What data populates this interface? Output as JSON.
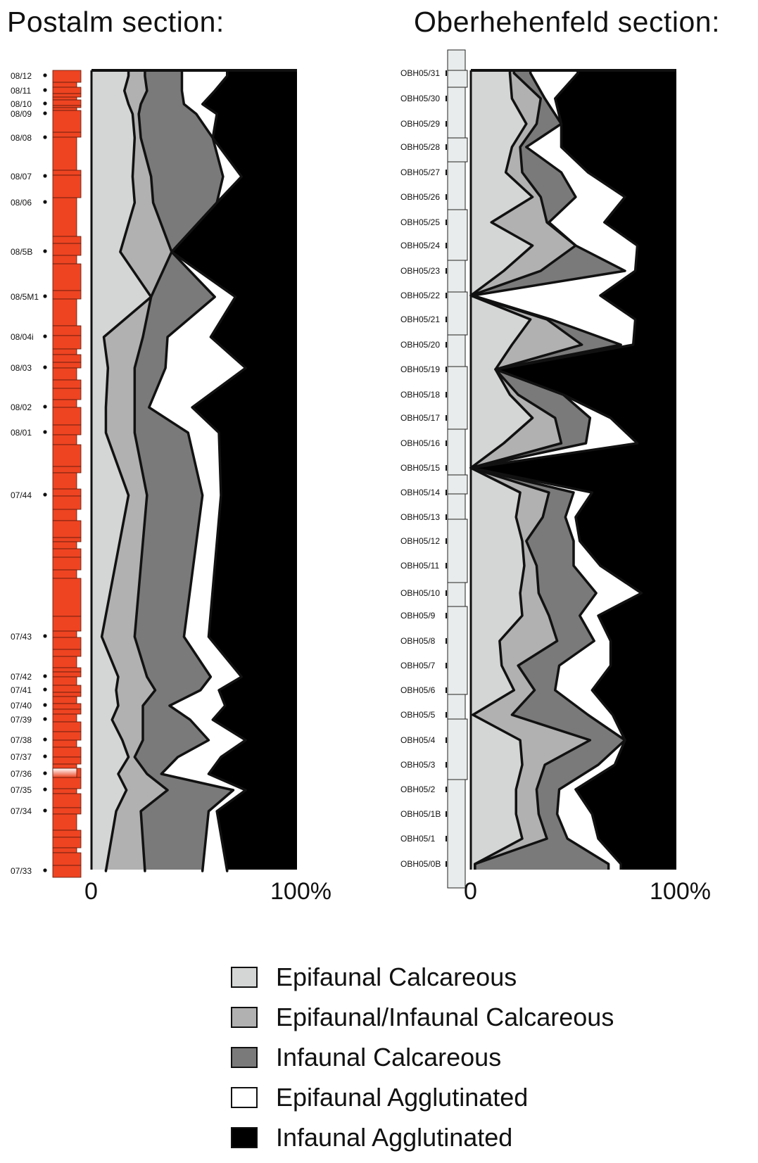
{
  "titles": {
    "left": "Postalm section:",
    "right": "Oberhehenfeld section:"
  },
  "colors": {
    "epifaunal_calcareous": "#d4d6d5",
    "epi_infaunal_calcareous": "#b1b1b1",
    "infaunal_calcareous": "#7a7a7a",
    "epifaunal_agglutinated": "#ffffff",
    "infaunal_agglutinated": "#000000",
    "postalm_column": "#ee4422",
    "oberhehenfeld_column": "#e9ecec"
  },
  "legend": [
    {
      "label": "Epifaunal Calcareous",
      "color": "#d4d6d5"
    },
    {
      "label": "Epifaunal/Infaunal Calcareous",
      "color": "#b1b1b1"
    },
    {
      "label": "Infaunal Calcareous",
      "color": "#7a7a7a"
    },
    {
      "label": "Epifaunal Agglutinated",
      "color": "#ffffff"
    },
    {
      "label": "Infaunal Agglutinated",
      "color": "#000000"
    }
  ],
  "chart_data": [
    {
      "type": "area",
      "title": "Postalm section:",
      "x_ticks": [
        "0",
        "100%"
      ],
      "xlim": [
        0,
        100
      ],
      "stacked": true,
      "series_names": [
        "Epifaunal Calcareous",
        "Epifaunal/Infaunal Calcareous",
        "Infaunal Calcareous",
        "Epifaunal Agglutinated",
        "Infaunal Agglutinated"
      ],
      "samples": [
        "08/12",
        "08/11",
        "08/10",
        "08/09",
        "08/08",
        "08/07",
        "08/06",
        "08/5B",
        "08/5M1",
        "08/04i",
        "08/03",
        "08/02",
        "08/01",
        "07/44",
        "07/43",
        "07/42",
        "07/41",
        "07/40",
        "07/39",
        "07/38",
        "07/37",
        "07/36",
        "07/35",
        "07/34",
        "07/33"
      ],
      "cumulative_percent": [
        [
          18,
          26,
          44,
          66,
          100
        ],
        [
          16,
          27,
          44,
          60,
          100
        ],
        [
          18,
          24,
          45,
          54,
          100
        ],
        [
          20,
          23,
          51,
          61,
          100
        ],
        [
          21,
          24,
          59,
          59,
          100
        ],
        [
          20,
          29,
          64,
          73,
          100
        ],
        [
          21,
          30,
          61,
          61,
          100
        ],
        [
          14,
          39,
          39,
          39,
          100
        ],
        [
          29,
          29,
          60,
          70,
          100
        ],
        [
          6,
          25,
          37,
          58,
          100
        ],
        [
          8,
          21,
          36,
          75,
          100
        ],
        [
          7,
          21,
          28,
          49,
          100
        ],
        [
          7,
          21,
          47,
          62,
          100
        ],
        [
          18,
          27,
          54,
          63,
          100
        ],
        [
          5,
          21,
          45,
          57,
          100
        ],
        [
          13,
          27,
          58,
          73,
          100
        ],
        [
          12,
          31,
          53,
          62,
          100
        ],
        [
          13,
          25,
          38,
          65,
          100
        ],
        [
          10,
          25,
          48,
          59,
          100
        ],
        [
          15,
          25,
          57,
          75,
          100
        ],
        [
          18,
          21,
          42,
          63,
          100
        ],
        [
          13,
          27,
          34,
          57,
          100
        ],
        [
          17,
          37,
          69,
          75,
          100
        ],
        [
          12,
          24,
          57,
          61,
          100
        ],
        [
          7,
          26,
          54,
          66,
          100
        ]
      ]
    },
    {
      "type": "area",
      "title": "Oberhehenfeld section:",
      "x_ticks": [
        "0",
        "100%"
      ],
      "xlim": [
        0,
        100
      ],
      "stacked": true,
      "series_names": [
        "Epifaunal Calcareous",
        "Epifaunal/Infaunal Calcareous",
        "Infaunal Calcareous",
        "Epifaunal Agglutinated",
        "Infaunal Agglutinated"
      ],
      "samples": [
        "OBH05/31",
        "OBH05/30",
        "OBH05/29",
        "OBH05/28",
        "OBH05/27",
        "OBH05/26",
        "OBH05/25",
        "OBH05/24",
        "OBH05/23",
        "OBH05/22",
        "OBH05/21",
        "OBH05/20",
        "OBH05/19",
        "OBH05/18",
        "OBH05/17",
        "OBH05/16",
        "OBH05/15",
        "OBH05/14",
        "OBH05/13",
        "OBH05/12",
        "OBH05/11",
        "OBH05/10",
        "OBH05/9",
        "OBH05/8",
        "OBH05/7",
        "OBH05/6",
        "OBH05/5",
        "OBH05/4",
        "OBH05/3",
        "OBH05/2",
        "OBH05/1B",
        "OBH05/1",
        "OBH05/0B"
      ],
      "cumulative_percent": [
        [
          19,
          21,
          29,
          52,
          100
        ],
        [
          20,
          34,
          36,
          41,
          100
        ],
        [
          27,
          32,
          44,
          44,
          100
        ],
        [
          20,
          24,
          27,
          44,
          100
        ],
        [
          17,
          25,
          44,
          57,
          100
        ],
        [
          30,
          34,
          51,
          75,
          100
        ],
        [
          10,
          37,
          38,
          65,
          100
        ],
        [
          30,
          51,
          51,
          81,
          100
        ],
        [
          16,
          34,
          75,
          80,
          100
        ],
        [
          0,
          0,
          1,
          63,
          100
        ],
        [
          29,
          37,
          39,
          80,
          100
        ],
        [
          20,
          54,
          73,
          79,
          100
        ],
        [
          12,
          12,
          12,
          12,
          100
        ],
        [
          19,
          23,
          45,
          45,
          100
        ],
        [
          30,
          41,
          58,
          68,
          100
        ],
        [
          16,
          44,
          56,
          81,
          100
        ],
        [
          0,
          0,
          0,
          0,
          100
        ],
        [
          24,
          38,
          50,
          59,
          100
        ],
        [
          22,
          35,
          46,
          51,
          100
        ],
        [
          25,
          27,
          50,
          53,
          100
        ],
        [
          26,
          32,
          50,
          63,
          100
        ],
        [
          24,
          33,
          61,
          83,
          100
        ],
        [
          25,
          38,
          53,
          62,
          100
        ],
        [
          14,
          42,
          60,
          68,
          100
        ],
        [
          15,
          23,
          43,
          68,
          100
        ],
        [
          21,
          31,
          41,
          59,
          100
        ],
        [
          1,
          20,
          57,
          69,
          100
        ],
        [
          24,
          58,
          75,
          75,
          100
        ],
        [
          25,
          36,
          62,
          70,
          100
        ],
        [
          22,
          32,
          43,
          51,
          100
        ],
        [
          22,
          33,
          42,
          59,
          100
        ],
        [
          25,
          37,
          47,
          62,
          100
        ],
        [
          2,
          2,
          67,
          73,
          100
        ]
      ]
    }
  ]
}
